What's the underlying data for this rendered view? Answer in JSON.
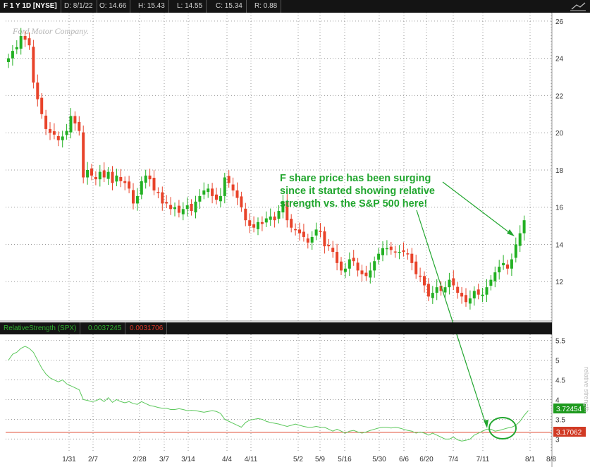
{
  "header": {
    "symbol": "F 1 Y 1D [NYSE]",
    "date": "D: 8/1/22",
    "open": "O: 14.66",
    "high": "H: 15.43",
    "low": "L: 14.55",
    "close": "C: 15.34",
    "range": "R: 0.88"
  },
  "logo_text": "Ford Motor Company.",
  "indicator": {
    "title": "RelativeStrength (SPX)",
    "value1": "0.0037245",
    "value2": "0.0031706",
    "value1_color": "#2fb52f",
    "value2_color": "#e03a2a",
    "current_badge": "3.72454",
    "ref_badge": "3.17062",
    "side_label": "relative strength"
  },
  "annotation": {
    "lines": [
      "F share price has been surging",
      "since it started showing relative",
      "strength vs. the S&P 500 here!"
    ],
    "color": "#22a62f"
  },
  "colors": {
    "up": "#23b023",
    "down": "#e8432a",
    "rs_line": "#5cc85c",
    "ref_line": "#e04a30",
    "badge_green": "#1f9a1f",
    "badge_red": "#d13a24"
  },
  "chart_data": [
    {
      "type": "candlestick",
      "y_ticks": [
        12,
        14,
        16,
        18,
        20,
        22,
        24,
        26
      ],
      "ylim": [
        10,
        26.3
      ],
      "x_ticks": [
        "1/31",
        "2/7",
        "2/28",
        "3/7",
        "3/14",
        "4/4",
        "4/11",
        "5/2",
        "5/9",
        "5/16",
        "5/30",
        "6/6",
        "6/20",
        "7/4",
        "7/11",
        "8/1",
        "8/8"
      ],
      "close_path": [
        [
          0,
          24.0
        ],
        [
          1,
          24.4
        ],
        [
          2,
          24.6
        ],
        [
          3,
          25.2
        ],
        [
          4,
          25.0
        ],
        [
          5,
          24.7
        ],
        [
          6,
          22.7
        ],
        [
          7,
          21.8
        ],
        [
          8,
          21.0
        ],
        [
          9,
          20.2
        ],
        [
          10,
          20.0
        ],
        [
          11,
          19.9
        ],
        [
          12,
          19.6
        ],
        [
          13,
          19.8
        ],
        [
          14,
          20.1
        ],
        [
          15,
          20.9
        ],
        [
          16,
          20.5
        ],
        [
          17,
          20.1
        ],
        [
          18,
          17.6
        ],
        [
          19,
          18.0
        ],
        [
          20,
          17.7
        ],
        [
          21,
          17.5
        ],
        [
          22,
          17.9
        ],
        [
          23,
          17.6
        ],
        [
          24,
          17.9
        ],
        [
          25,
          17.3
        ],
        [
          26,
          17.7
        ],
        [
          27,
          17.4
        ],
        [
          28,
          17.3
        ],
        [
          29,
          17.0
        ],
        [
          30,
          16.2
        ],
        [
          31,
          16.6
        ],
        [
          32,
          17.4
        ],
        [
          33,
          17.7
        ],
        [
          34,
          17.5
        ],
        [
          35,
          16.9
        ],
        [
          36,
          16.8
        ],
        [
          37,
          16.2
        ],
        [
          38,
          16.2
        ],
        [
          39,
          15.9
        ],
        [
          40,
          16.0
        ],
        [
          41,
          15.7
        ],
        [
          42,
          15.9
        ],
        [
          43,
          16.1
        ],
        [
          44,
          15.8
        ],
        [
          45,
          16.3
        ],
        [
          46,
          16.6
        ],
        [
          47,
          16.9
        ],
        [
          48,
          17.0
        ],
        [
          49,
          16.6
        ],
        [
          50,
          16.4
        ],
        [
          51,
          16.6
        ],
        [
          52,
          17.6
        ],
        [
          53,
          17.3
        ],
        [
          54,
          16.9
        ],
        [
          55,
          16.5
        ],
        [
          56,
          16.0
        ],
        [
          57,
          15.3
        ],
        [
          58,
          15.0
        ],
        [
          59,
          14.9
        ],
        [
          60,
          15.2
        ],
        [
          61,
          15.1
        ],
        [
          62,
          15.4
        ],
        [
          63,
          15.5
        ],
        [
          64,
          15.3
        ],
        [
          65,
          15.8
        ],
        [
          66,
          16.3
        ],
        [
          67,
          15.3
        ],
        [
          68,
          14.9
        ],
        [
          69,
          14.8
        ],
        [
          70,
          14.6
        ],
        [
          71,
          14.4
        ],
        [
          72,
          14.1
        ],
        [
          73,
          14.4
        ],
        [
          74,
          14.8
        ],
        [
          75,
          14.7
        ],
        [
          76,
          13.9
        ],
        [
          77,
          13.9
        ],
        [
          78,
          13.6
        ],
        [
          79,
          13.0
        ],
        [
          80,
          12.6
        ],
        [
          81,
          12.7
        ],
        [
          82,
          13.2
        ],
        [
          83,
          13.1
        ],
        [
          84,
          12.6
        ],
        [
          85,
          12.4
        ],
        [
          86,
          12.3
        ],
        [
          87,
          12.6
        ],
        [
          88,
          13.1
        ],
        [
          89,
          13.5
        ],
        [
          90,
          13.8
        ],
        [
          91,
          13.8
        ],
        [
          92,
          13.7
        ],
        [
          93,
          13.6
        ],
        [
          94,
          13.6
        ],
        [
          95,
          13.6
        ],
        [
          96,
          13.5
        ],
        [
          97,
          13.0
        ],
        [
          98,
          12.4
        ],
        [
          99,
          12.3
        ],
        [
          100,
          11.8
        ],
        [
          101,
          11.2
        ],
        [
          102,
          11.4
        ],
        [
          103,
          11.7
        ],
        [
          104,
          11.5
        ],
        [
          105,
          11.7
        ],
        [
          106,
          12.1
        ],
        [
          107,
          11.8
        ],
        [
          108,
          11.4
        ],
        [
          109,
          11.2
        ],
        [
          110,
          10.9
        ],
        [
          111,
          11.1
        ],
        [
          112,
          11.5
        ],
        [
          113,
          11.3
        ],
        [
          114,
          11.3
        ],
        [
          115,
          11.7
        ],
        [
          116,
          12.1
        ],
        [
          117,
          12.5
        ],
        [
          118,
          12.8
        ],
        [
          119,
          13.0
        ],
        [
          120,
          12.7
        ],
        [
          121,
          13.2
        ],
        [
          122,
          14.0
        ],
        [
          123,
          14.6
        ],
        [
          124,
          15.3
        ]
      ]
    },
    {
      "type": "line",
      "series": [
        {
          "name": "RelativeStrength (SPX)"
        }
      ],
      "y_ticks": [
        3,
        3.5,
        4,
        4.5,
        5,
        5.5
      ],
      "ylim": [
        2.9,
        5.6
      ],
      "reference_value": 3.17062,
      "last_value": 3.72454,
      "values": [
        5.0,
        5.15,
        5.2,
        5.3,
        5.35,
        5.3,
        5.2,
        5.0,
        4.8,
        4.65,
        4.55,
        4.5,
        4.45,
        4.5,
        4.4,
        4.35,
        4.3,
        4.25,
        4.0,
        3.98,
        3.95,
        3.97,
        4.02,
        3.95,
        4.05,
        3.93,
        4.0,
        3.95,
        3.92,
        3.95,
        3.9,
        3.88,
        3.95,
        3.9,
        3.85,
        3.83,
        3.8,
        3.78,
        3.78,
        3.75,
        3.75,
        3.77,
        3.75,
        3.72,
        3.73,
        3.72,
        3.7,
        3.68,
        3.7,
        3.72,
        3.7,
        3.65,
        3.5,
        3.45,
        3.4,
        3.35,
        3.3,
        3.42,
        3.48,
        3.5,
        3.52,
        3.5,
        3.45,
        3.42,
        3.4,
        3.38,
        3.35,
        3.32,
        3.35,
        3.38,
        3.35,
        3.32,
        3.3,
        3.3,
        3.32,
        3.3,
        3.3,
        3.25,
        3.2,
        3.25,
        3.2,
        3.15,
        3.2,
        3.22,
        3.18,
        3.15,
        3.18,
        3.22,
        3.25,
        3.28,
        3.3,
        3.3,
        3.28,
        3.3,
        3.28,
        3.25,
        3.22,
        3.2,
        3.15,
        3.18,
        3.15,
        3.1,
        3.15,
        3.1,
        3.05,
        3.0,
        3.0,
        3.05,
        2.98,
        2.95,
        2.97,
        3.0,
        3.1,
        3.15,
        3.2,
        3.25,
        3.25,
        3.2,
        3.22,
        3.25,
        3.28,
        3.3,
        3.35,
        3.45,
        3.6,
        3.72
      ]
    }
  ]
}
